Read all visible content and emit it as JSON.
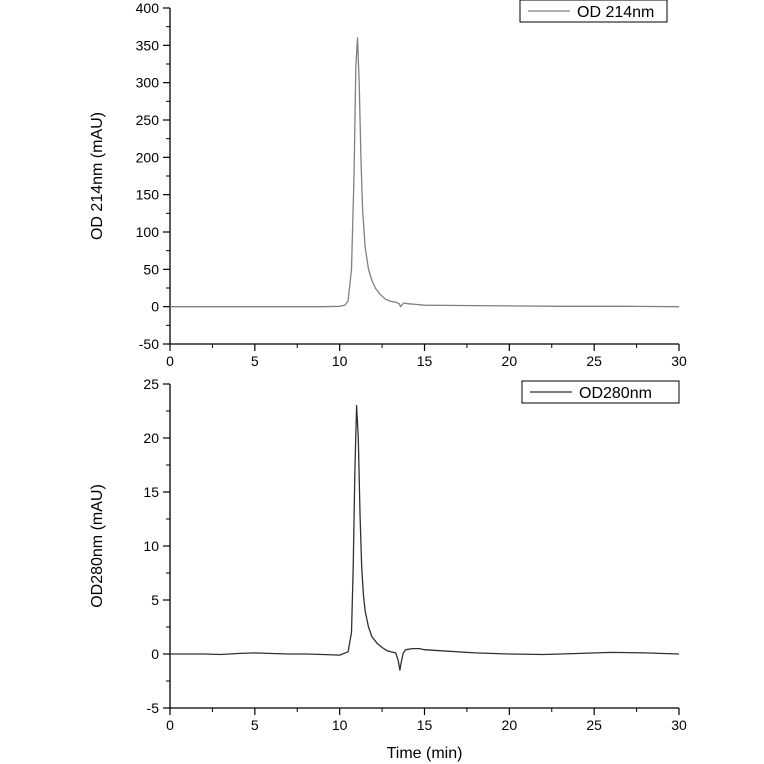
{
  "chart_data": [
    {
      "type": "line",
      "xlabel": "",
      "ylabel": "OD 214nm (mAU)",
      "xlim": [
        0,
        30
      ],
      "ylim": [
        -50,
        400
      ],
      "xticks": [
        0,
        5,
        10,
        15,
        20,
        25,
        30
      ],
      "yticks": [
        -50,
        0,
        50,
        100,
        150,
        200,
        250,
        300,
        350,
        400
      ],
      "grid": false,
      "legend": "top-right",
      "series": [
        {
          "name": "OD 214nm",
          "color": "#808080",
          "x": [
            0,
            2,
            4,
            6,
            8,
            9,
            10,
            10.3,
            10.5,
            10.7,
            10.85,
            10.95,
            11.05,
            11.15,
            11.25,
            11.35,
            11.5,
            11.7,
            11.9,
            12.1,
            12.4,
            12.7,
            13.0,
            13.3,
            13.5,
            13.6,
            13.7,
            13.8,
            14.0,
            14.5,
            15,
            17,
            20,
            23,
            25,
            27,
            30
          ],
          "y": [
            0,
            0,
            0,
            0,
            0,
            0,
            0.5,
            2,
            8,
            50,
            180,
            320,
            360,
            300,
            200,
            130,
            80,
            50,
            35,
            25,
            16,
            10,
            7,
            6,
            4,
            0,
            3,
            5,
            4,
            3,
            2,
            1.5,
            1,
            0.5,
            0.5,
            0.5,
            0
          ]
        }
      ]
    },
    {
      "type": "line",
      "xlabel": "Time (min)",
      "ylabel": "OD280nm (mAU)",
      "xlim": [
        0,
        30
      ],
      "ylim": [
        -5,
        25
      ],
      "xticks": [
        0,
        5,
        10,
        15,
        20,
        25,
        30
      ],
      "yticks": [
        -5,
        0,
        5,
        10,
        15,
        20,
        25
      ],
      "grid": false,
      "legend": "top-right",
      "series": [
        {
          "name": "OD280nm",
          "color": "#303030",
          "x": [
            0,
            2,
            3,
            4,
            5,
            6,
            7,
            8,
            9,
            10,
            10.5,
            10.7,
            10.8,
            10.9,
            11.0,
            11.1,
            11.2,
            11.3,
            11.4,
            11.5,
            11.7,
            11.9,
            12.2,
            12.5,
            12.8,
            13.0,
            13.3,
            13.45,
            13.55,
            13.65,
            13.75,
            13.9,
            14.3,
            14.7,
            15,
            16,
            18,
            20,
            22,
            24,
            26,
            28,
            30
          ],
          "y": [
            0,
            0,
            -0.05,
            0.05,
            0.1,
            0.05,
            0,
            0,
            -0.05,
            -0.1,
            0.2,
            2,
            8,
            17,
            23,
            20,
            13,
            8,
            5.5,
            4,
            2.5,
            1.6,
            1,
            0.6,
            0.3,
            0.2,
            0.1,
            -0.6,
            -1.5,
            -0.6,
            0.1,
            0.4,
            0.5,
            0.5,
            0.4,
            0.3,
            0.1,
            0,
            -0.05,
            0.05,
            0.15,
            0.1,
            0
          ]
        }
      ]
    }
  ]
}
